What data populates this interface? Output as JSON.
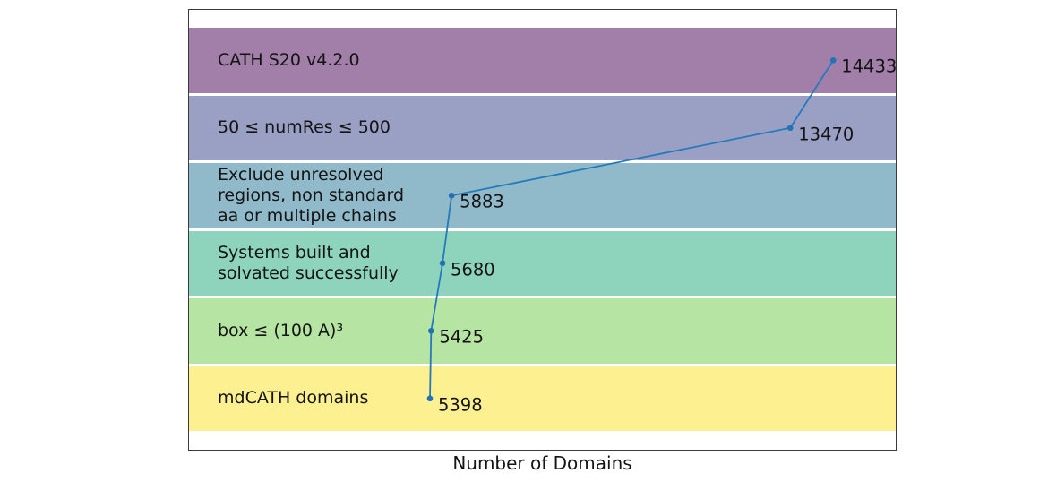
{
  "figure": {
    "xlabel": "Number of Domains",
    "line_color": "#2579bd",
    "marker_color": "#2273b5",
    "border_color": "#3a3a3a",
    "text_color": "#141414"
  },
  "chart_data": {
    "type": "line",
    "description": "Funnel-style filtering chart: horizontal colored bands per filtering step with a connected line of domain counts",
    "title": "",
    "xlabel": "Number of Domains",
    "ylabel": "",
    "xlim": [
      0,
      15860
    ],
    "grid": false,
    "legend": null,
    "rows": [
      {
        "label": "CATH S20 v4.2.0",
        "value": 14433,
        "color": "#a27fa9"
      },
      {
        "label": "50 ≤ numRes ≤ 500",
        "value": 13470,
        "color": "#99a0c4"
      },
      {
        "label": "Exclude unresolved\nregions, non standard\naa or multiple chains",
        "value": 5883,
        "color": "#90b9c9"
      },
      {
        "label": "Systems built and\nsolvated successfully",
        "value": 5680,
        "color": "#8ed4bd"
      },
      {
        "label": "box ≤ (100 A)³",
        "value": 5425,
        "color": "#b6e5a3"
      },
      {
        "label": "mdCATH domains",
        "value": 5398,
        "color": "#fdf090"
      }
    ]
  }
}
